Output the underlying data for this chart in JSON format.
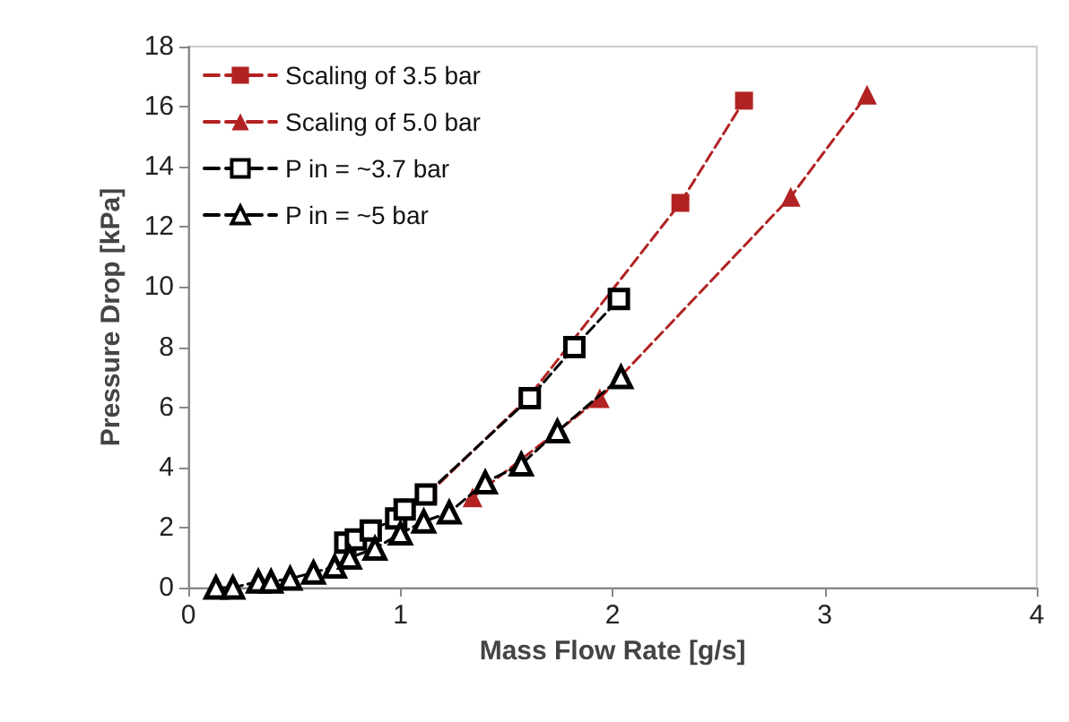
{
  "chart_data": {
    "type": "line",
    "xlabel": "Mass Flow Rate [g/s]",
    "ylabel": "Pressure Drop [kPa]",
    "xlim": [
      0,
      4
    ],
    "xticks": [
      0,
      1,
      2,
      3,
      4
    ],
    "ylim": [
      0,
      18
    ],
    "yticks": [
      0,
      2,
      4,
      6,
      8,
      10,
      12,
      14,
      16,
      18
    ],
    "grid": false,
    "legend": "top left",
    "line_style": "dashed",
    "series": [
      {
        "name": "Scaling of 3.5 bar",
        "color": "#b22222",
        "marker": "square",
        "x": [
          1.13,
          1.6,
          2.32,
          2.62
        ],
        "values": [
          3.1,
          6.3,
          12.8,
          16.2
        ]
      },
      {
        "name": "Scaling of 5.0 bar",
        "color": "#b22222",
        "marker": "triangle",
        "x": [
          1.34,
          1.94,
          2.84,
          3.2
        ],
        "values": [
          3.0,
          6.3,
          13.0,
          16.4
        ]
      },
      {
        "name": "P in = ~3.7 bar",
        "color": "#000000",
        "marker": "square",
        "x": [
          0.74,
          0.79,
          0.86,
          0.98,
          1.02,
          1.12,
          1.61,
          1.82,
          2.03
        ],
        "values": [
          1.5,
          1.6,
          1.9,
          2.3,
          2.6,
          3.1,
          6.3,
          8.0,
          9.6
        ]
      },
      {
        "name": "P in = ~5 bar",
        "color": "#000000",
        "marker": "triangle",
        "x": [
          0.13,
          0.21,
          0.33,
          0.39,
          0.48,
          0.59,
          0.69,
          0.76,
          0.88,
          1.0,
          1.11,
          1.23,
          1.4,
          1.57,
          1.74,
          2.04
        ],
        "values": [
          0,
          0,
          0.2,
          0.2,
          0.3,
          0.5,
          0.7,
          1.0,
          1.3,
          1.8,
          2.2,
          2.5,
          3.5,
          4.1,
          5.2,
          7.0
        ]
      }
    ]
  }
}
